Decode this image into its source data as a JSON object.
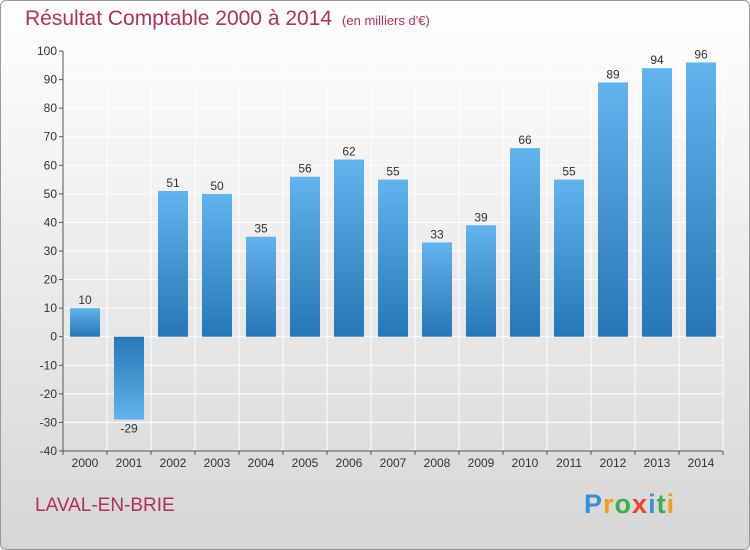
{
  "title": "Résultat Comptable 2000 à 2014",
  "subtitle": "(en milliers d'€)",
  "commune": "LAVAL-EN-BRIE",
  "logo": {
    "text": "Proxiti",
    "letters": [
      {
        "ch": "P",
        "color": "#3a8fd9"
      },
      {
        "ch": "r",
        "color": "#e8a317"
      },
      {
        "ch": "o",
        "color": "#3fae49"
      },
      {
        "ch": "x",
        "color": "#e8452e"
      },
      {
        "ch": "i",
        "color": "#3a8fd9"
      },
      {
        "ch": "t",
        "color": "#3fae49"
      },
      {
        "ch": "i",
        "color": "#e8a317"
      }
    ]
  },
  "colors": {
    "title": "#b0305c",
    "bar_light": "#5fb0ec",
    "bar_dark": "#2a7dbd",
    "grid": "#ffffff",
    "text": "#333333"
  },
  "chart_data": {
    "type": "bar",
    "title": "Résultat Comptable 2000 à 2014",
    "subtitle": "(en milliers d'€)",
    "categories": [
      "2000",
      "2001",
      "2002",
      "2003",
      "2004",
      "2005",
      "2006",
      "2007",
      "2008",
      "2009",
      "2010",
      "2011",
      "2012",
      "2013",
      "2014"
    ],
    "values": [
      10,
      -29,
      51,
      50,
      35,
      56,
      62,
      55,
      33,
      39,
      66,
      55,
      89,
      94,
      96
    ],
    "yticks": [
      -40,
      -30,
      -20,
      -10,
      0,
      10,
      20,
      30,
      40,
      50,
      60,
      70,
      80,
      90,
      100
    ],
    "ylim": [
      -40,
      100
    ],
    "grid": true,
    "legend": "none",
    "xlabel": "",
    "ylabel": ""
  }
}
